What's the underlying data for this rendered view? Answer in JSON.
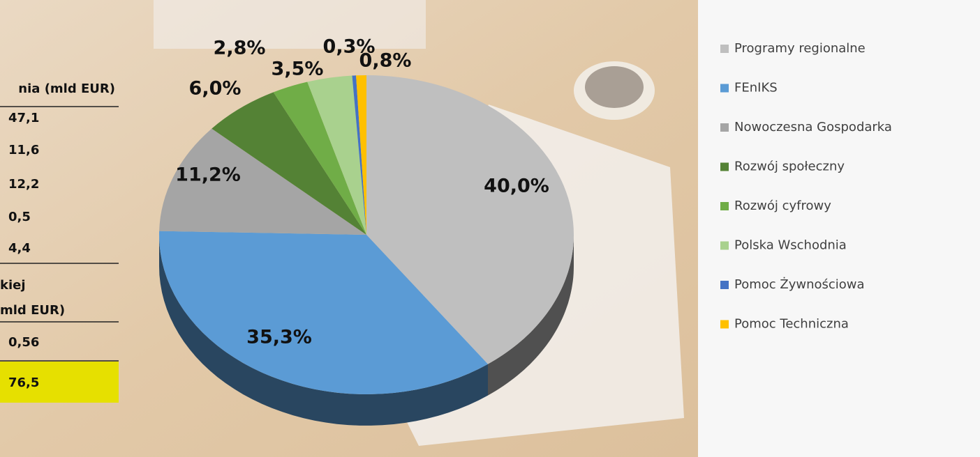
{
  "chart_data": {
    "type": "pie",
    "categories": [
      "Programy regionalne",
      "FEnIKS",
      "Nowoczesna Gospodarka",
      "Rozwój społeczny",
      "Rozwój cyfrowy",
      "Polska Wschodnia",
      "Pomoc Żywnościowa",
      "Pomoc Techniczna"
    ],
    "values": [
      40.0,
      35.3,
      11.2,
      6.0,
      2.8,
      3.5,
      0.3,
      0.8
    ],
    "value_labels": [
      "40,0%",
      "35,3%",
      "11,2%",
      "6,0%",
      "2,8%",
      "3,5%",
      "0,3%",
      "0,8%"
    ],
    "colors": [
      "#bfbfbf",
      "#5b9bd5",
      "#a5a5a5",
      "#548235",
      "#70ad47",
      "#a9d18e",
      "#4472c4",
      "#ffc000"
    ],
    "legend": "right"
  },
  "table": {
    "header": "nia (mld EUR)",
    "rows": [
      "47,1",
      "11,6",
      "12,2",
      "0,5",
      "4,4"
    ],
    "subheader": [
      "kiej",
      "mld EUR)"
    ],
    "subrow": "0,56",
    "total": "76,5"
  }
}
